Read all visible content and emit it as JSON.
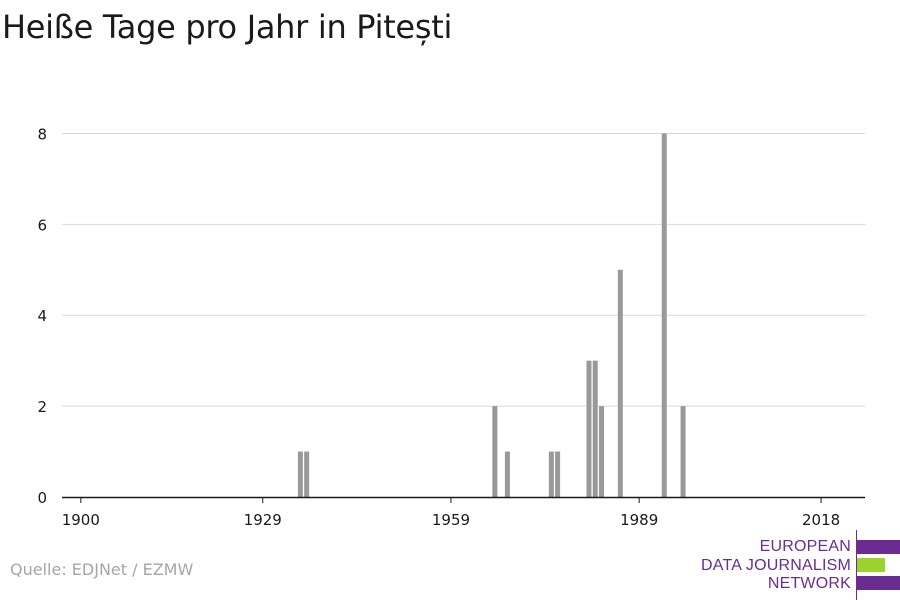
{
  "title": "Heiße Tage pro Jahr in Pitești",
  "source": "Quelle: EDJNet / EZMW",
  "logo": {
    "lines": [
      "EUROPEAN",
      "DATA JOURNALISM",
      "NETWORK"
    ],
    "colors": {
      "purple": "#6a2c91",
      "green": "#9bd22e"
    }
  },
  "chart_data": {
    "type": "bar",
    "title": "Heiße Tage pro Jahr in Pitești",
    "xlabel": "",
    "ylabel": "",
    "xlim": [
      1897,
      2025
    ],
    "ylim": [
      0,
      9
    ],
    "x_ticks": [
      1900,
      1929,
      1959,
      1989,
      2018
    ],
    "y_ticks": [
      0,
      2,
      4,
      6,
      8
    ],
    "grid": true,
    "bar_color": "#999999",
    "x": [
      1935,
      1936,
      1966,
      1968,
      1975,
      1976,
      1981,
      1982,
      1983,
      1986,
      1993,
      1996,
      1998
    ],
    "values": [
      1,
      1,
      2,
      1,
      1,
      1,
      3,
      3,
      2,
      5,
      8,
      2,
      0
    ]
  }
}
